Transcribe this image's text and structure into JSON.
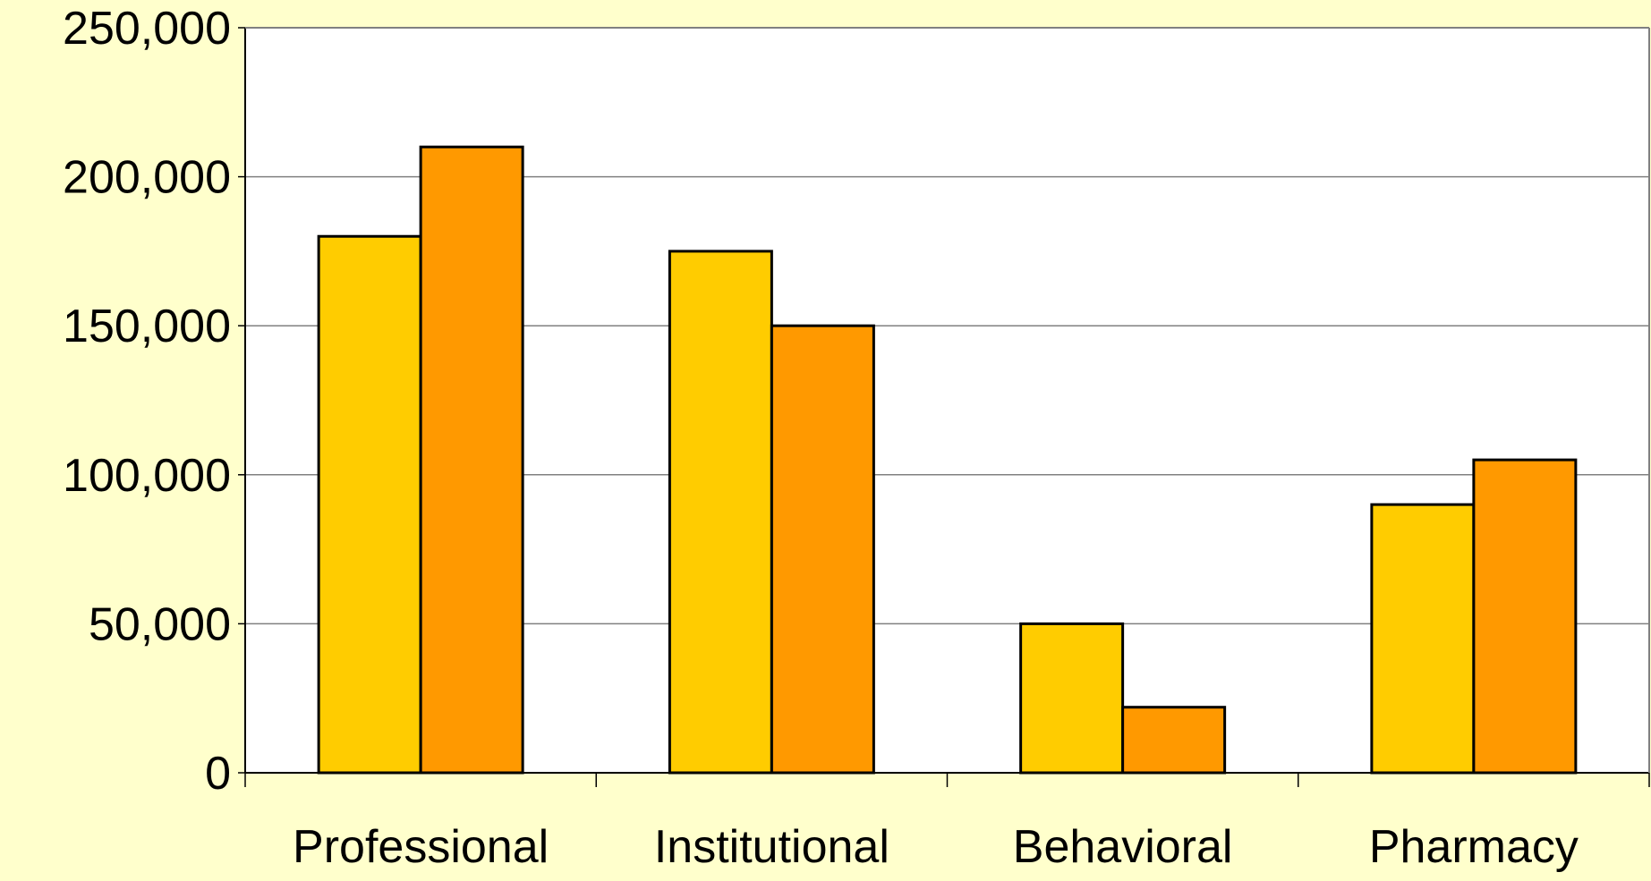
{
  "colors": {
    "background": "#FFFFCC",
    "plot_area": "#FFFFFF",
    "series_1": "#FFCC00",
    "series_2": "#FF9900",
    "bar_outline": "#000000",
    "gridline": "#808080"
  },
  "chart_data": {
    "type": "bar",
    "title": "",
    "xlabel": "",
    "ylabel": "",
    "categories": [
      "Professional",
      "Institutional",
      "Behavioral",
      "Pharmacy"
    ],
    "series": [
      {
        "values": [
          180000,
          175000,
          50000,
          90000
        ]
      },
      {
        "values": [
          210000,
          150000,
          22000,
          105000
        ]
      }
    ],
    "ylim": [
      0,
      250000
    ],
    "yticks": [
      0,
      50000,
      100000,
      150000,
      200000,
      250000
    ],
    "ytick_labels": [
      "0",
      "50,000",
      "100,000",
      "150,000",
      "200,000",
      "250,000"
    ],
    "grid": true,
    "legend": "none"
  }
}
